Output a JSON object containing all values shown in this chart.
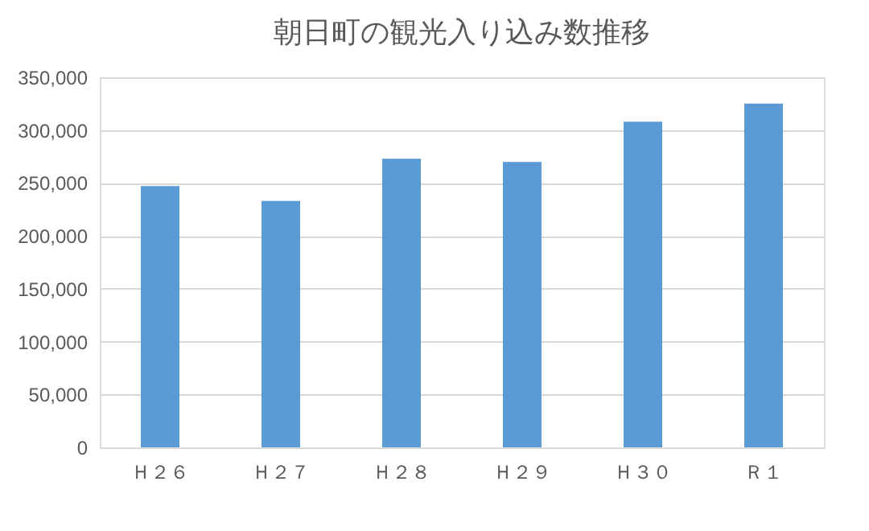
{
  "chart_data": {
    "type": "bar",
    "title": "朝日町の観光入り込み数推移",
    "categories": [
      "Ｈ２６",
      "Ｈ２７",
      "Ｈ２８",
      "Ｈ２９",
      "Ｈ３０",
      "Ｒ１"
    ],
    "values": [
      247000,
      233000,
      273000,
      270000,
      308000,
      325000
    ],
    "color": "#5b9bd5",
    "ylim": [
      0,
      350000
    ],
    "yticks": [
      0,
      {
        "value": 50000,
        "label": "50,000"
      },
      {
        "value": 100000,
        "label": "100,000"
      },
      {
        "value": 150000,
        "label": "150,000"
      },
      {
        "value": 200000,
        "label": "200,000"
      },
      {
        "value": 250000,
        "label": "250,000"
      },
      {
        "value": 300000,
        "label": "300,000"
      },
      {
        "value": 350000,
        "label": "350,000"
      }
    ],
    "grid": "y"
  }
}
